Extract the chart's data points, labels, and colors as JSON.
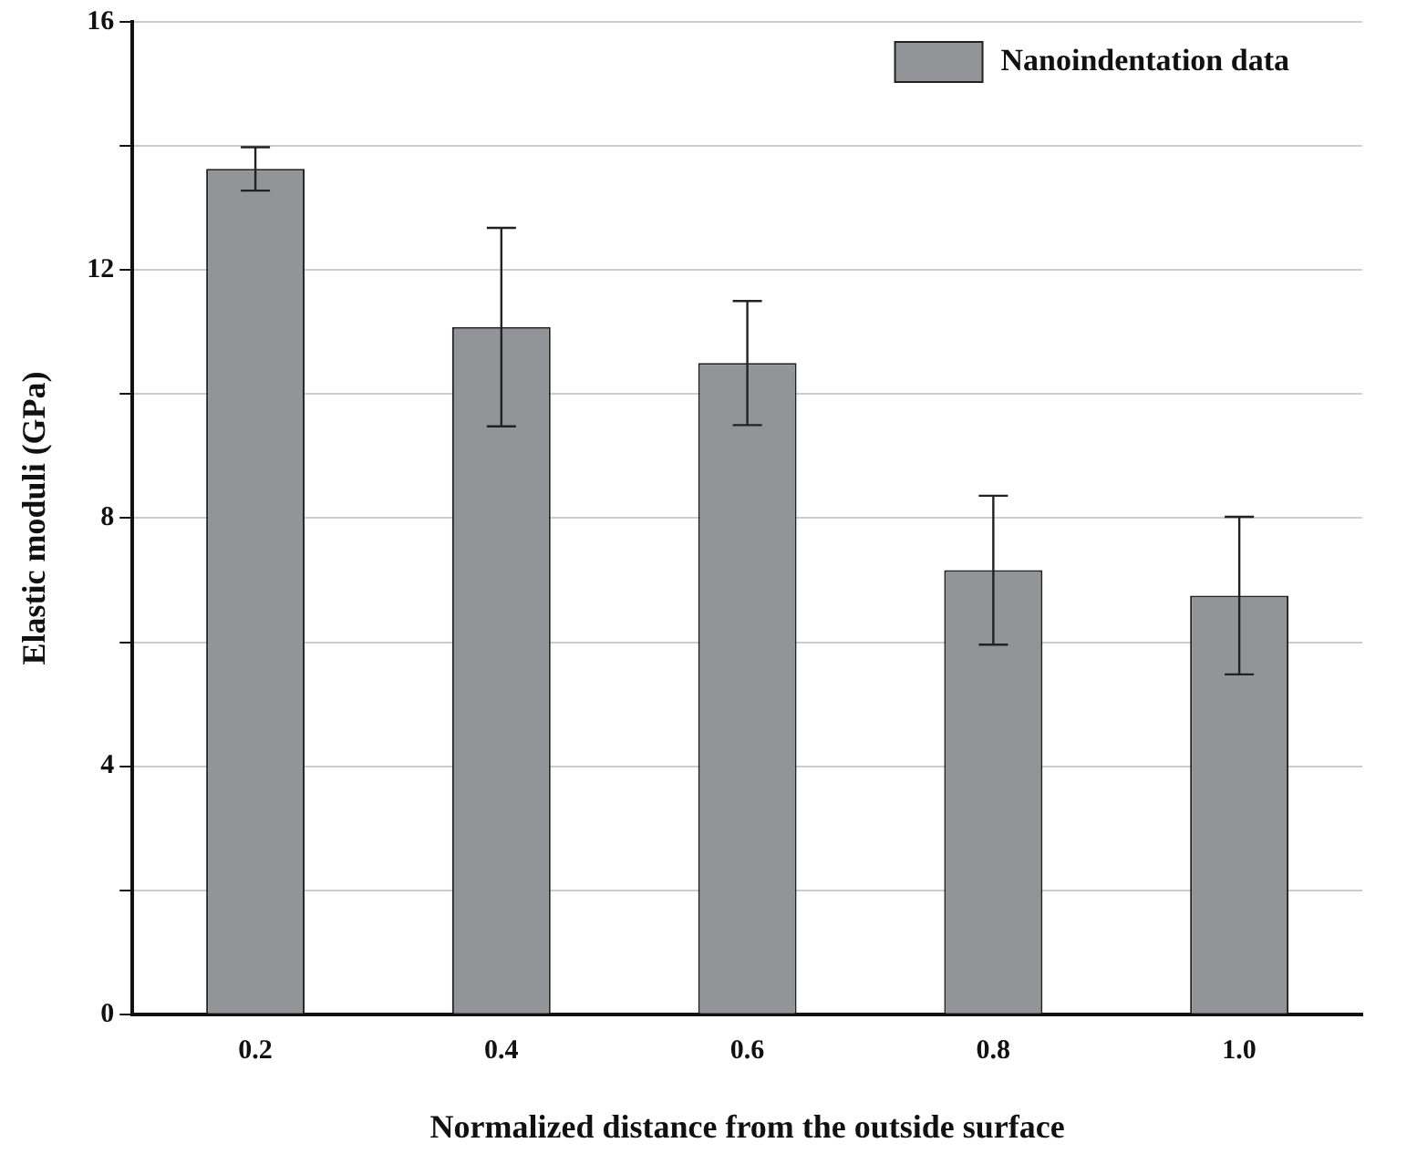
{
  "chart_data": {
    "type": "bar",
    "xlabel": "Normalized distance from the outside surface",
    "ylabel": "Elastic moduli (GPa)",
    "categories": [
      "0.2",
      "0.4",
      "0.6",
      "0.8",
      "1.0"
    ],
    "series": [
      {
        "name": "Nanoindentation data",
        "color": "#939498",
        "values": [
          13.63,
          11.08,
          10.5,
          7.16,
          6.75
        ],
        "errors": [
          0.35,
          1.6,
          1.0,
          1.2,
          1.27
        ]
      }
    ],
    "ylim": [
      0,
      16
    ],
    "yticks": [
      0,
      {
        "value": 2,
        "label": null
      },
      4,
      {
        "value": 6,
        "label": null
      },
      8,
      {
        "value": 10,
        "label": null
      },
      12,
      {
        "value": 14,
        "label": null
      },
      16
    ],
    "grid": "y",
    "legend": "top right"
  }
}
